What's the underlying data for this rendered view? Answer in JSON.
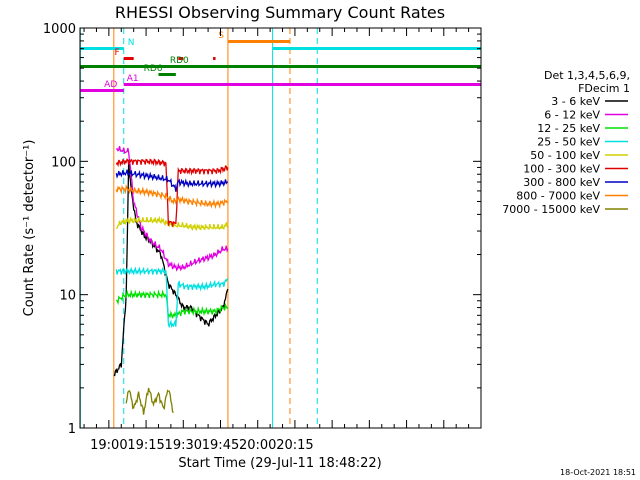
{
  "chart_data": {
    "type": "line",
    "title": "RHESSI Observing Summary Count Rates",
    "xlabel": "Start Time (29-Jul-11 18:48:22)",
    "ylabel": "Count Rate (s⁻¹ detector⁻¹)",
    "yscale": "log",
    "ylim": [
      1,
      1000
    ],
    "xlim": [
      "18:48:22",
      "21:30"
    ],
    "x_ticks": [
      "19:00",
      "19:15",
      "19:30",
      "19:45",
      "20:00",
      "20:15"
    ],
    "y_ticks": [
      "1",
      "10",
      "100",
      "1000"
    ],
    "legend": {
      "position": "right",
      "header": [
        "Det 1,3,4,5,6,9,",
        "FDecim 1"
      ],
      "entries": [
        {
          "label": "3 - 6 keV",
          "color": "#000000"
        },
        {
          "label": "6 - 12 keV",
          "color": "#e000e0"
        },
        {
          "label": "12 - 25 keV",
          "color": "#00e000"
        },
        {
          "label": "25 - 50 keV",
          "color": "#00e0e0"
        },
        {
          "label": "50 - 100 keV",
          "color": "#d0d000"
        },
        {
          "label": "100 - 300 keV",
          "color": "#e00000"
        },
        {
          "label": "300 - 800 keV",
          "color": "#0000c0"
        },
        {
          "label": "800 - 7000 keV",
          "color": "#ff8000"
        },
        {
          "label": "7000 - 15000 keV",
          "color": "#808000"
        }
      ]
    },
    "series": [
      {
        "name": "3 - 6 keV",
        "color": "#000000",
        "points": [
          [
            "19:02",
            2.5
          ],
          [
            "19:05",
            3
          ],
          [
            "19:07",
            10
          ],
          [
            "19:08",
            100
          ],
          [
            "19:09",
            60
          ],
          [
            "19:11",
            35
          ],
          [
            "19:14",
            28
          ],
          [
            "19:17",
            25
          ],
          [
            "19:21",
            20
          ],
          [
            "19:24",
            12
          ],
          [
            "19:27",
            10
          ],
          [
            "19:30",
            8
          ],
          [
            "19:33",
            8
          ],
          [
            "19:36",
            7
          ],
          [
            "19:40",
            6
          ],
          [
            "19:43",
            7
          ],
          [
            "19:46",
            8
          ],
          [
            "19:48",
            11
          ]
        ]
      },
      {
        "name": "6 - 12 keV",
        "color": "#e000e0",
        "points": [
          [
            "19:03",
            125
          ],
          [
            "19:07",
            118
          ],
          [
            "19:08",
            120
          ],
          [
            "19:10",
            50
          ],
          [
            "19:13",
            32
          ],
          [
            "19:17",
            25
          ],
          [
            "19:21",
            22
          ],
          [
            "19:24",
            17
          ],
          [
            "19:27",
            16
          ],
          [
            "19:30",
            16
          ],
          [
            "19:33",
            17
          ],
          [
            "19:36",
            18
          ],
          [
            "19:40",
            19
          ],
          [
            "19:43",
            20
          ],
          [
            "19:46",
            22
          ],
          [
            "19:48",
            22
          ]
        ]
      },
      {
        "name": "12 - 25 keV",
        "color": "#00e000",
        "points": [
          [
            "19:03",
            9
          ],
          [
            "19:07",
            10
          ],
          [
            "19:11",
            10
          ],
          [
            "19:15",
            10
          ],
          [
            "19:19",
            10
          ],
          [
            "19:23",
            10
          ],
          [
            "19:24",
            7
          ],
          [
            "19:27",
            7
          ],
          [
            "19:30",
            7.5
          ],
          [
            "19:33",
            7.5
          ],
          [
            "19:36",
            7.5
          ],
          [
            "19:40",
            7.5
          ],
          [
            "19:43",
            7.5
          ],
          [
            "19:46",
            8
          ],
          [
            "19:48",
            8
          ]
        ]
      },
      {
        "name": "25 - 50 keV",
        "color": "#00e0e0",
        "points": [
          [
            "19:03",
            15
          ],
          [
            "19:07",
            15
          ],
          [
            "19:11",
            15
          ],
          [
            "19:15",
            15
          ],
          [
            "19:19",
            15
          ],
          [
            "19:23",
            15
          ],
          [
            "19:24",
            6
          ],
          [
            "19:27",
            6
          ],
          [
            "19:28",
            12
          ],
          [
            "19:31",
            11.5
          ],
          [
            "19:35",
            11.5
          ],
          [
            "19:39",
            11.5
          ],
          [
            "19:43",
            12
          ],
          [
            "19:46",
            12
          ],
          [
            "19:48",
            13
          ]
        ]
      },
      {
        "name": "50 - 100 keV",
        "color": "#d0d000",
        "points": [
          [
            "19:03",
            32
          ],
          [
            "19:05",
            35
          ],
          [
            "19:09",
            36
          ],
          [
            "19:13",
            36
          ],
          [
            "19:17",
            36
          ],
          [
            "19:21",
            36
          ],
          [
            "19:24",
            34
          ],
          [
            "19:27",
            33
          ],
          [
            "19:30",
            33
          ],
          [
            "19:34",
            32
          ],
          [
            "19:38",
            32
          ],
          [
            "19:42",
            32
          ],
          [
            "19:46",
            32
          ],
          [
            "19:48",
            34
          ]
        ]
      },
      {
        "name": "100 - 300 keV",
        "color": "#e00000",
        "points": [
          [
            "19:03",
            97
          ],
          [
            "19:07",
            100
          ],
          [
            "19:11",
            100
          ],
          [
            "19:15",
            100
          ],
          [
            "19:19",
            99
          ],
          [
            "19:23",
            97
          ],
          [
            "19:24",
            35
          ],
          [
            "19:27",
            34
          ],
          [
            "19:28",
            85
          ],
          [
            "19:32",
            85
          ],
          [
            "19:36",
            85
          ],
          [
            "19:40",
            85
          ],
          [
            "19:44",
            85
          ],
          [
            "19:48",
            90
          ]
        ]
      },
      {
        "name": "300 - 800 keV",
        "color": "#0000c0",
        "points": [
          [
            "19:03",
            80
          ],
          [
            "19:07",
            82
          ],
          [
            "19:11",
            80
          ],
          [
            "19:15",
            78
          ],
          [
            "19:19",
            76
          ],
          [
            "19:24",
            73
          ],
          [
            "19:27",
            62
          ],
          [
            "19:28",
            70
          ],
          [
            "19:32",
            68
          ],
          [
            "19:36",
            68
          ],
          [
            "19:40",
            68
          ],
          [
            "19:44",
            68
          ],
          [
            "19:48",
            70
          ]
        ]
      },
      {
        "name": "800 - 7000 keV",
        "color": "#ff8000",
        "points": [
          [
            "19:03",
            62
          ],
          [
            "19:07",
            62
          ],
          [
            "19:11",
            60
          ],
          [
            "19:15",
            59
          ],
          [
            "19:19",
            57
          ],
          [
            "19:23",
            55
          ],
          [
            "19:26",
            50
          ],
          [
            "19:28",
            52
          ],
          [
            "19:32",
            50
          ],
          [
            "19:36",
            49
          ],
          [
            "19:40",
            48
          ],
          [
            "19:44",
            48
          ],
          [
            "19:48",
            50
          ]
        ]
      },
      {
        "name": "7000 - 15000 keV",
        "color": "#808000",
        "points": [
          [
            "19:07",
            1.5
          ],
          [
            "19:08",
            2
          ],
          [
            "19:10",
            1.4
          ],
          [
            "19:12",
            1.8
          ],
          [
            "19:14",
            1.3
          ],
          [
            "19:16",
            2
          ],
          [
            "19:18",
            1.5
          ],
          [
            "19:20",
            1.8
          ],
          [
            "19:22",
            1.4
          ],
          [
            "19:24",
            2
          ],
          [
            "19:26",
            1.3
          ]
        ]
      }
    ],
    "flags": [
      {
        "label": "N",
        "color": "#00e0e0",
        "segments": [
          [
            "18:48:22",
            "19:06"
          ],
          [
            "20:06",
            "21:30"
          ]
        ]
      },
      {
        "label": "S",
        "color": "#ff8000",
        "segments": [
          [
            "19:48",
            "20:13"
          ]
        ]
      },
      {
        "label": "F",
        "color": "#e00000",
        "segments": [
          [
            "19:06",
            "19:10"
          ],
          [
            "19:28",
            "19:30"
          ],
          [
            "19:42",
            "19:43"
          ]
        ]
      },
      {
        "label": "RD0",
        "color": "#008000",
        "segments": [
          [
            "18:48:22",
            "21:30"
          ]
        ]
      },
      {
        "label": "RD6",
        "color": "#008000",
        "segments": [
          [
            "19:20",
            "19:27"
          ]
        ]
      },
      {
        "label": "AD",
        "color": "#e000e0",
        "segments": [
          [
            "18:48:22",
            "19:06"
          ]
        ]
      },
      {
        "label": "A1",
        "color": "#e000e0",
        "segments": [
          [
            "19:06",
            "21:30"
          ]
        ]
      }
    ],
    "vertical_markers": [
      {
        "time": "18:48:30",
        "color": "#00e0e0",
        "style": "solid"
      },
      {
        "time": "19:06",
        "color": "#00e0e0",
        "style": "dashed"
      },
      {
        "time": "19:02",
        "color": "#ff8000",
        "style": "solid"
      },
      {
        "time": "19:48",
        "color": "#ff8000",
        "style": "solid"
      },
      {
        "time": "20:06",
        "color": "#00e0e0",
        "style": "solid"
      },
      {
        "time": "20:13",
        "color": "#ff8000",
        "style": "dashed"
      },
      {
        "time": "20:24",
        "color": "#00e0e0",
        "style": "dashed"
      }
    ]
  },
  "footer": {
    "timestamp": "18-Oct-2021 18:51"
  },
  "colors": {
    "axis": "#000000",
    "background": "#ffffff"
  }
}
